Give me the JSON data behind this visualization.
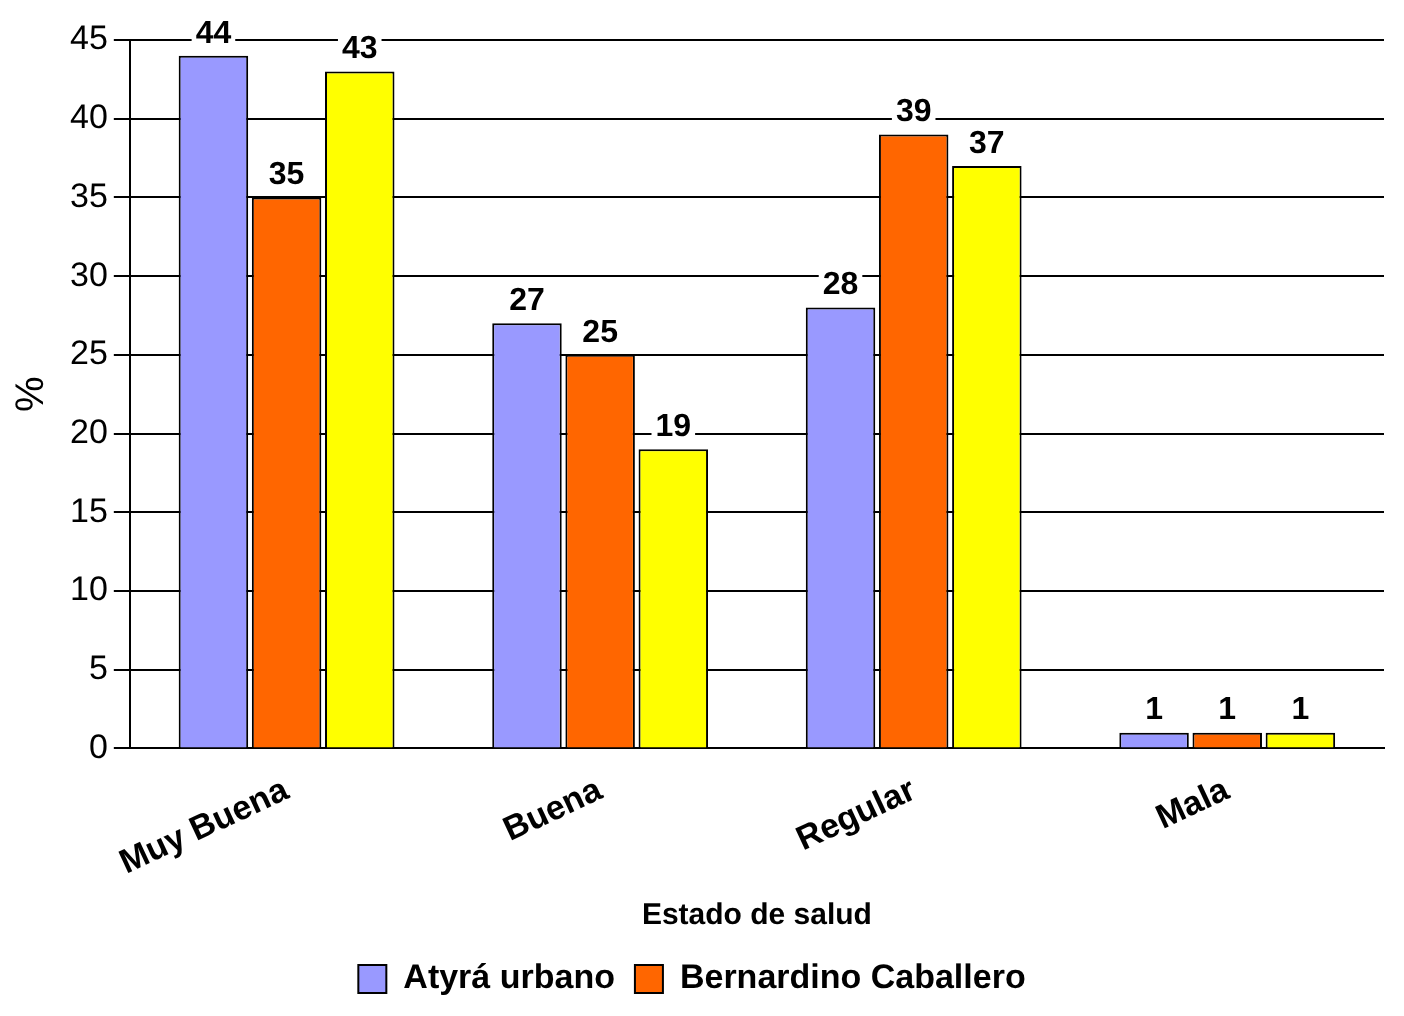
{
  "chart_data": {
    "type": "bar",
    "xlabel": "Estado de salud",
    "ylabel": "%",
    "categories": [
      "Muy Buena",
      "Buena",
      "Regular",
      "Mala"
    ],
    "series": [
      {
        "name": "Atyrá urbano",
        "color": "#9999ff",
        "values": [
          44,
          27,
          28,
          1
        ]
      },
      {
        "name": "Bernardino Caballero",
        "color": "#ff6600",
        "values": [
          35,
          25,
          39,
          1
        ]
      },
      {
        "color": "#ffff00",
        "values": [
          43,
          19,
          37,
          1
        ]
      }
    ],
    "ylim": [
      0,
      45
    ],
    "yticks": [
      0,
      5,
      10,
      15,
      20,
      25,
      30,
      35,
      40,
      45
    ],
    "grid": "y",
    "legend": "bottom",
    "data_labels": true
  }
}
